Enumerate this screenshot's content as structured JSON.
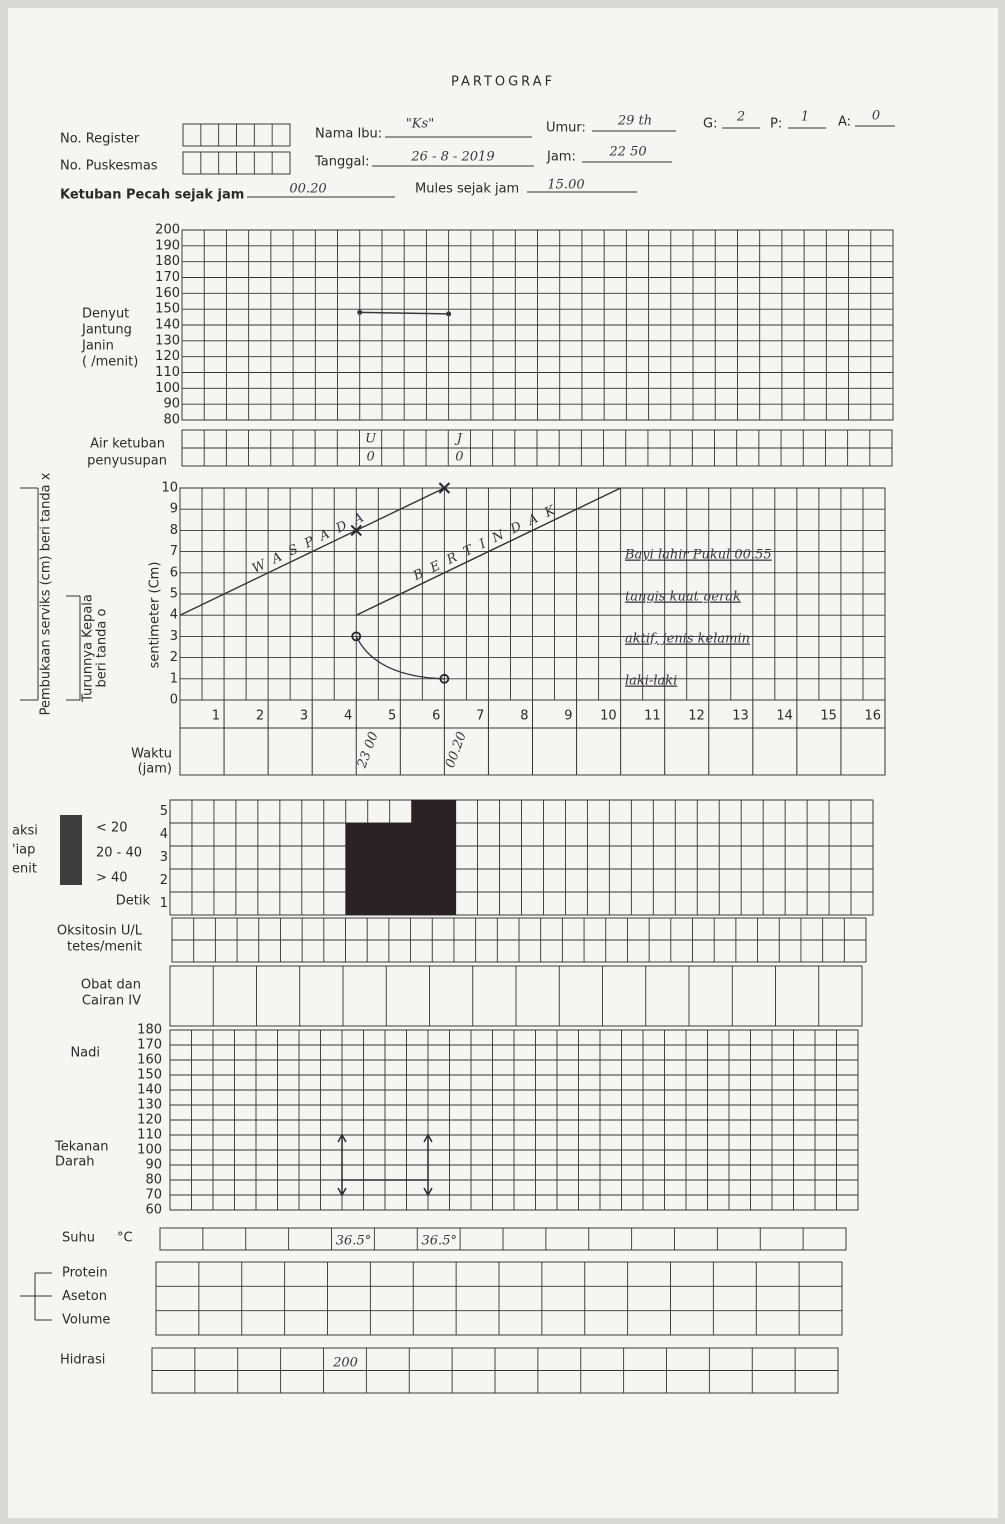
{
  "header": {
    "title": "PARTOGRAF",
    "no_register_label": "No. Register",
    "no_puskesmas_label": "No. Puskesmas",
    "nama_ibu_label": "Nama Ibu:",
    "nama_ibu": "\"Ks\"",
    "umur_label": "Umur:",
    "umur": "29 th",
    "g_label": "G:",
    "g": "2",
    "p_label": "P:",
    "p": "1",
    "a_label": "A:",
    "a": "0",
    "tanggal_label": "Tanggal:",
    "tanggal": "26 - 8 - 2019",
    "jam_label": "Jam:",
    "jam": "22 50",
    "ketuban_label": "Ketuban Pecah sejak jam",
    "ketuban": "00.20",
    "mules_label": "Mules sejak jam",
    "mules": "15.00"
  },
  "fhr": {
    "label": [
      "Denyut",
      "Jantung",
      "Janin",
      "( /menit)"
    ],
    "ylim": [
      80,
      200
    ],
    "yticks": [
      200,
      190,
      180,
      170,
      160,
      150,
      140,
      130,
      120,
      110,
      100,
      90,
      80
    ],
    "hours": [
      4,
      6
    ],
    "values": [
      148,
      147
    ]
  },
  "amniotic": {
    "labels": [
      "Air ketuban",
      "penyusupan"
    ],
    "hours": [
      4,
      6
    ],
    "air": [
      "U",
      "J"
    ],
    "penyusupan": [
      "0",
      "0"
    ]
  },
  "cervix": {
    "cervix_label": "Pembukaan serviks (cm) beri tanda x",
    "descent_label": [
      "Turunnya Kepala",
      "beri tanda o"
    ],
    "axis_label": "sentimeter (Cm)",
    "ylim": [
      0,
      10
    ],
    "yticks": [
      0,
      1,
      2,
      3,
      4,
      5,
      6,
      7,
      8,
      9,
      10
    ],
    "xlim": [
      0,
      16
    ],
    "xticks": [
      1,
      2,
      3,
      4,
      5,
      6,
      7,
      8,
      9,
      10,
      11,
      12,
      13,
      14,
      15,
      16
    ],
    "alert": {
      "label": "WASPADA",
      "hours": [
        0,
        6
      ],
      "cm": [
        4,
        10
      ]
    },
    "action": {
      "label": "BERTINDAK",
      "hours": [
        4,
        10
      ],
      "cm": [
        4,
        10
      ]
    },
    "dilation": {
      "hours": [
        4,
        6
      ],
      "values": [
        8,
        10
      ]
    },
    "descent": {
      "hours": [
        4,
        6
      ],
      "values": [
        3,
        1
      ]
    },
    "time_label": [
      "Waktu",
      "(jam)"
    ],
    "times": {
      "hours": [
        4,
        6
      ],
      "labels": [
        "23 00",
        "00.20"
      ]
    },
    "note": [
      "Bayi lahir Pukul 00.55",
      "tangis kuat gerak",
      "aktif, jenis kelamin",
      "laki-laki"
    ]
  },
  "contractions": {
    "side_fragments": [
      "aksi",
      "'iap",
      "enit"
    ],
    "legend": [
      "< 20",
      "20 - 40",
      "> 40"
    ],
    "unit": "Detik",
    "ylim": [
      0,
      5
    ],
    "yticks": [
      1,
      2,
      3,
      4,
      5
    ],
    "start_hours": [
      4,
      4.5,
      5,
      5.5,
      6
    ],
    "counts": [
      4,
      4,
      4,
      5,
      5
    ]
  },
  "oxytocin": {
    "label": [
      "Oksitosin U/L",
      "tetes/menit"
    ]
  },
  "drugs": {
    "label": [
      "Obat dan",
      "Cairan IV"
    ]
  },
  "vitals": {
    "pulse_label": "Nadi",
    "bp_label": [
      "Tekanan",
      "Darah"
    ],
    "ylim": [
      60,
      180
    ],
    "yticks": [
      180,
      170,
      160,
      150,
      140,
      130,
      120,
      110,
      100,
      90,
      80,
      70,
      60
    ],
    "bp": {
      "hours": [
        4,
        6
      ],
      "systolic": [
        110,
        110
      ],
      "diastolic": [
        70,
        70
      ]
    },
    "pulse": {
      "hours": [
        4,
        6
      ],
      "values": [
        80,
        80
      ]
    }
  },
  "temperature": {
    "label": "Suhu",
    "unit": "°C",
    "hours": [
      4,
      6
    ],
    "values": [
      "36.5°",
      "36.5°"
    ]
  },
  "urine": {
    "labels": [
      "Protein",
      "Aseton",
      "Volume"
    ]
  },
  "hydration": {
    "label": "Hidrasi",
    "hours": [
      4
    ],
    "values": [
      "200"
    ]
  }
}
